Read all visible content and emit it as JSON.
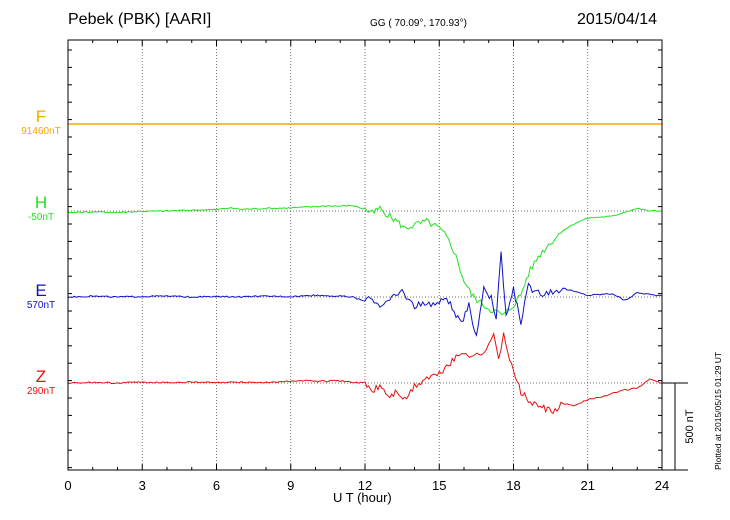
{
  "header": {
    "station": "Pebek (PBK)  [AARI]",
    "coords": "GG ( 70.09°, 170.93°)",
    "date": "2015/04/14"
  },
  "footer": {
    "plotted": "Plotted at 2015/05/15 01:29 UT"
  },
  "colors": {
    "F": "#f5a800",
    "H": "#22e022",
    "E": "#1010c8",
    "Z": "#e81010"
  },
  "chart_data": {
    "type": "line",
    "xlabel": "U T (hour)",
    "xlim": [
      0,
      24
    ],
    "xticks": [
      "0",
      "3",
      "6",
      "9",
      "12",
      "15",
      "18",
      "21",
      "24"
    ],
    "scale_bar": {
      "value_nT": 500,
      "label": "500 nT"
    },
    "grid": true,
    "series": [
      {
        "name": "F",
        "baseline_label": "91460nT",
        "x": [
          0,
          3,
          6,
          9,
          12,
          15,
          18,
          21,
          24
        ],
        "y": [
          0,
          0,
          0,
          0,
          0,
          0,
          0,
          0,
          0
        ]
      },
      {
        "name": "H",
        "baseline_label": "-50nT",
        "x": [
          0,
          1,
          2,
          3,
          4,
          5,
          6,
          6.5,
          7,
          8,
          9,
          10,
          10.5,
          11,
          11.5,
          12,
          12.3,
          12.6,
          13,
          13.3,
          13.6,
          14,
          14.5,
          15,
          15.3,
          15.6,
          16,
          16.3,
          16.6,
          17,
          17.3,
          17.6,
          18,
          18.3,
          18.6,
          19,
          19.5,
          20,
          20.5,
          21,
          21.5,
          22,
          22.5,
          23,
          23.5,
          24
        ],
        "y": [
          -10,
          -5,
          -8,
          -2,
          0,
          5,
          8,
          18,
          10,
          15,
          18,
          25,
          30,
          28,
          32,
          10,
          -15,
          15,
          -30,
          -60,
          -100,
          -80,
          -60,
          -100,
          -150,
          -230,
          -400,
          -480,
          -520,
          -560,
          -580,
          -600,
          -540,
          -480,
          -360,
          -260,
          -180,
          -110,
          -70,
          -40,
          -35,
          -30,
          -5,
          15,
          0,
          0
        ]
      },
      {
        "name": "E",
        "baseline_label": "570nT",
        "x": [
          0,
          1,
          2,
          3,
          4,
          5,
          6,
          7,
          8,
          9,
          10,
          11,
          11.5,
          12,
          12.3,
          12.6,
          13,
          13.5,
          14,
          14.5,
          15,
          15.3,
          15.6,
          15.9,
          16.2,
          16.5,
          16.8,
          17.1,
          17.3,
          17.5,
          17.7,
          18,
          18.3,
          18.6,
          19,
          19.5,
          20,
          21,
          22,
          22.5,
          23,
          24
        ],
        "y": [
          0,
          5,
          0,
          3,
          5,
          0,
          2,
          0,
          5,
          3,
          10,
          5,
          0,
          -25,
          -10,
          -45,
          -20,
          35,
          -55,
          -35,
          -35,
          5,
          -90,
          -160,
          -50,
          -230,
          60,
          -10,
          -130,
          245,
          -110,
          40,
          -140,
          60,
          20,
          30,
          50,
          10,
          20,
          -20,
          25,
          5
        ]
      },
      {
        "name": "Z",
        "baseline_label": "290nT",
        "x": [
          0,
          1,
          2,
          3,
          4,
          5,
          6,
          7,
          8,
          9,
          9.5,
          10,
          11,
          11.5,
          12,
          12.3,
          12.6,
          13,
          13.3,
          13.6,
          14,
          14.5,
          15,
          15.3,
          15.6,
          16,
          16.3,
          16.6,
          17,
          17.2,
          17.4,
          17.6,
          18,
          18.3,
          18.6,
          19,
          19.3,
          19.6,
          20,
          20.5,
          21,
          21.5,
          22,
          22.5,
          23,
          23.5,
          24
        ],
        "y": [
          0,
          3,
          0,
          5,
          3,
          5,
          2,
          5,
          3,
          10,
          15,
          10,
          12,
          5,
          0,
          -50,
          -15,
          -80,
          -45,
          -100,
          -20,
          30,
          50,
          100,
          135,
          180,
          160,
          160,
          210,
          280,
          150,
          270,
          60,
          -50,
          -100,
          -140,
          -150,
          -170,
          -120,
          -130,
          -95,
          -80,
          -60,
          -40,
          -30,
          20,
          0
        ]
      }
    ]
  }
}
